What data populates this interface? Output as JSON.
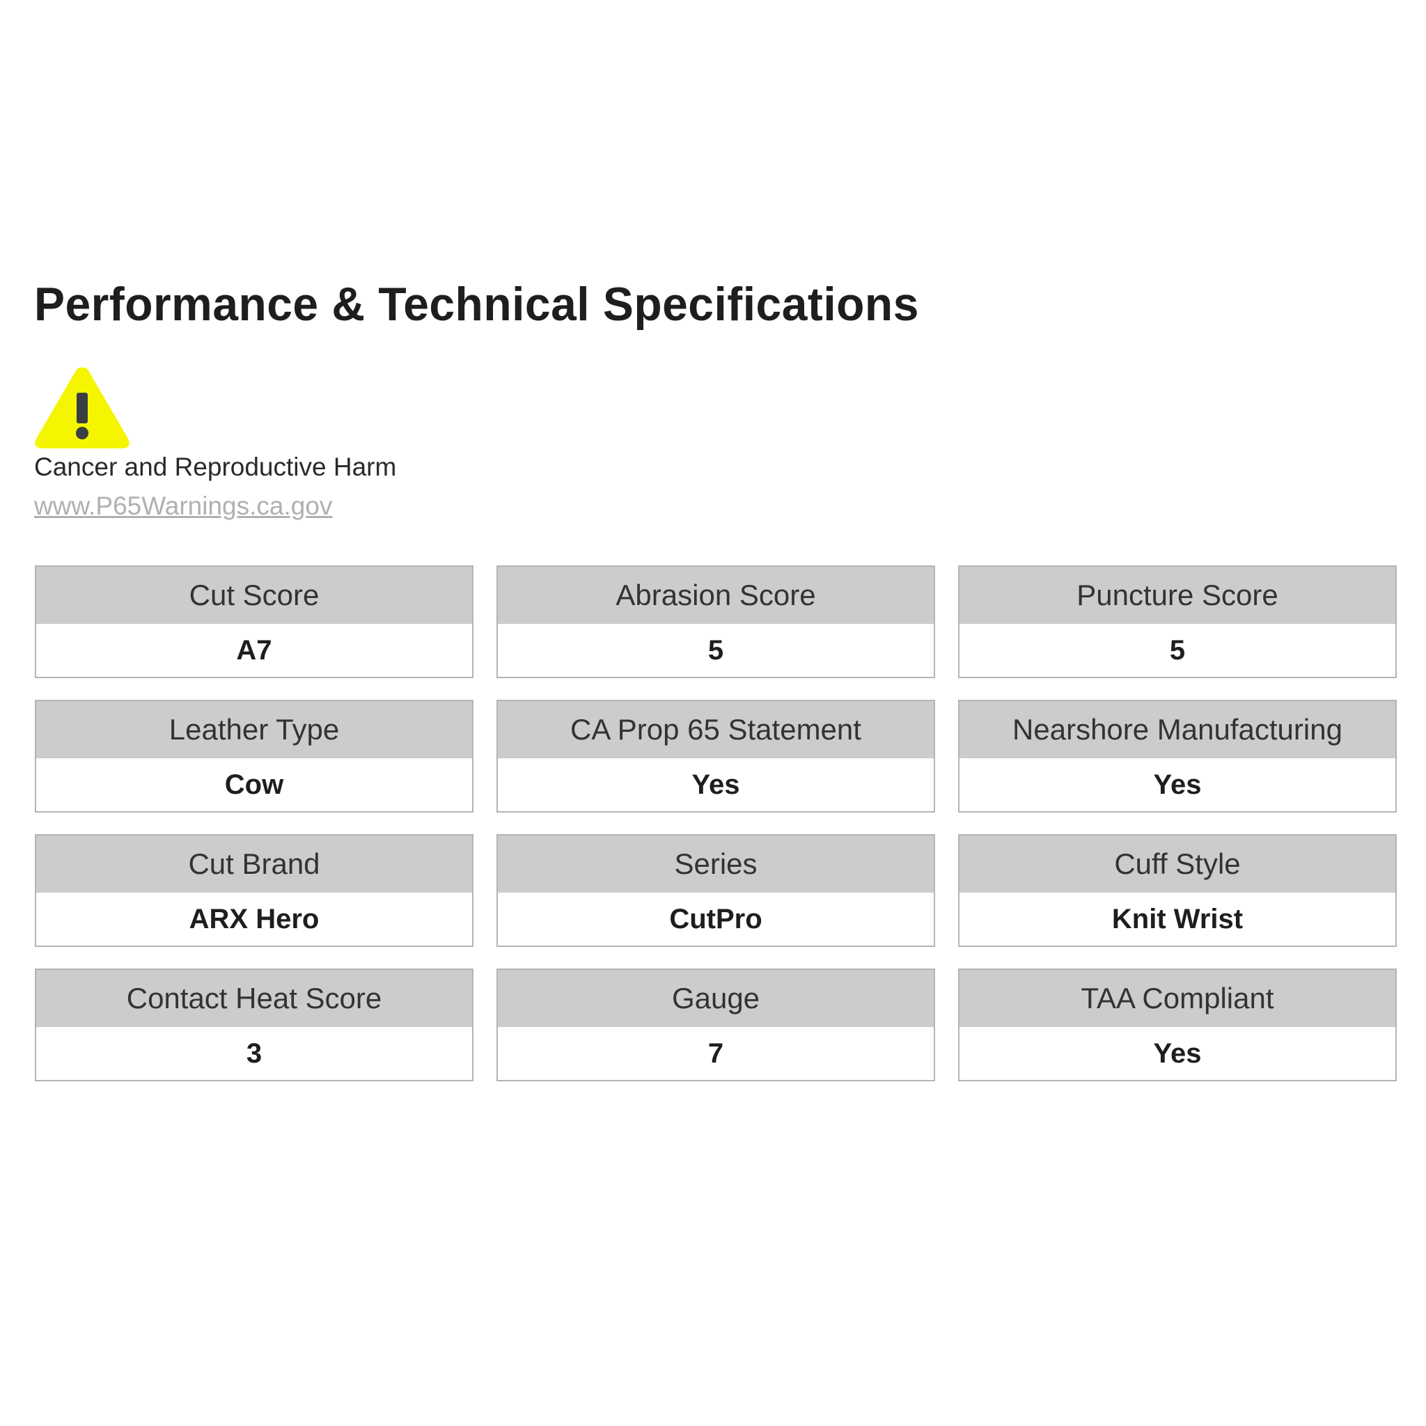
{
  "title": "Performance & Technical Specifications",
  "warning": {
    "icon": "warning-triangle-icon",
    "icon_color": "#f5f500",
    "text": "Cancer and Reproductive Harm",
    "link": "www.P65Warnings.ca.gov"
  },
  "specs": [
    {
      "label": "Cut Score",
      "value": "A7"
    },
    {
      "label": "Abrasion Score",
      "value": "5"
    },
    {
      "label": "Puncture Score",
      "value": "5"
    },
    {
      "label": "Leather Type",
      "value": "Cow"
    },
    {
      "label": "CA Prop 65 Statement",
      "value": "Yes"
    },
    {
      "label": "Nearshore Manufacturing",
      "value": "Yes"
    },
    {
      "label": "Cut Brand",
      "value": "ARX Hero"
    },
    {
      "label": "Series",
      "value": "CutPro"
    },
    {
      "label": "Cuff Style",
      "value": "Knit Wrist"
    },
    {
      "label": "Contact Heat Score",
      "value": "3"
    },
    {
      "label": "Gauge",
      "value": "7"
    },
    {
      "label": "TAA Compliant",
      "value": "Yes"
    }
  ]
}
